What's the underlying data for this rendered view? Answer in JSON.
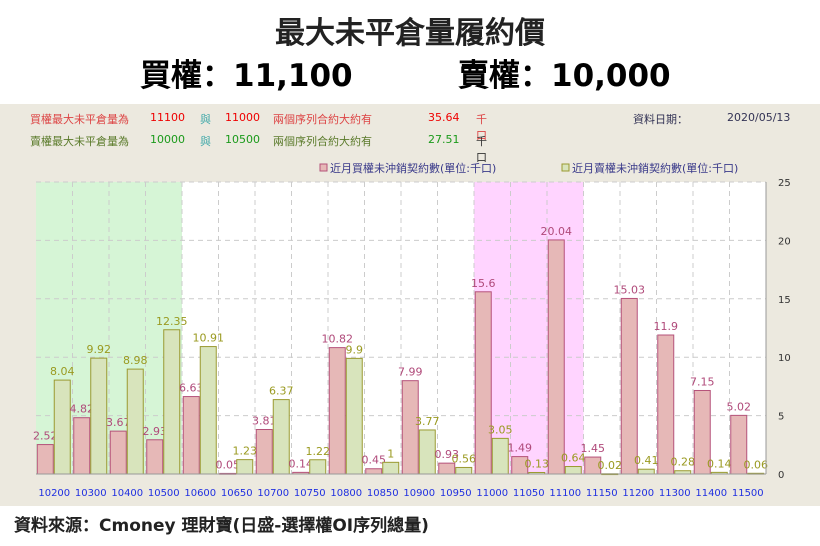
{
  "header": {
    "title": "最大未平倉量履約價",
    "call_label": "買權：11,100",
    "put_label": "賣權：10,000",
    "call_color": "#c0161b",
    "put_color": "#10a84a"
  },
  "info": {
    "call_row": {
      "label": "買權最大未平倉量為",
      "strike1": "11100",
      "conj": "與",
      "strike2": "11000",
      "desc": "兩個序列合約大約有",
      "value": "35.64",
      "unit": "千口"
    },
    "put_row": {
      "label": "賣權最大未平倉量為",
      "strike1": "10000",
      "conj": "與",
      "strike2": "10500",
      "desc": "兩個序列合約大約有",
      "value": "27.51",
      "unit": "千口"
    },
    "date_label": "資料日期：",
    "date": "2020/05/13"
  },
  "footer": "資料來源：Cmoney 理財寶(日盛-選擇權OI序列總量)",
  "chart_data": {
    "type": "bar",
    "categories": [
      "10200",
      "10300",
      "10400",
      "10500",
      "10600",
      "10650",
      "10700",
      "10750",
      "10800",
      "10850",
      "10900",
      "10950",
      "11000",
      "11050",
      "11100",
      "11150",
      "11200",
      "11300",
      "11400",
      "11500"
    ],
    "series": [
      {
        "name": "近月買權未沖銷契約數(單位:千口)",
        "color": "#e6b8b7",
        "values": [
          2.52,
          4.82,
          3.67,
          2.93,
          6.63,
          0.05,
          3.81,
          0.14,
          10.82,
          0.45,
          7.99,
          0.93,
          15.6,
          1.49,
          20.04,
          1.45,
          15.03,
          11.9,
          7.15,
          5.02
        ]
      },
      {
        "name": "近月賣權未沖銷契約數(單位:千口)",
        "color": "#d8e4bc",
        "values": [
          8.04,
          9.92,
          8.98,
          12.35,
          10.91,
          1.23,
          6.37,
          1.22,
          9.9,
          1,
          3.77,
          0.56,
          3.05,
          0.13,
          0.64,
          0.02,
          0.41,
          0.28,
          0.14,
          0.06
        ]
      }
    ],
    "ylim": [
      0,
      25
    ],
    "yticks": [
      0,
      5,
      10,
      15,
      20,
      25
    ],
    "y_axis_side": "right",
    "grid": true,
    "legend": "top",
    "highlights": [
      {
        "from": "10200",
        "to": "10500",
        "color": "#d6f5d6"
      },
      {
        "from": "11000",
        "to": "11100",
        "color": "#ffd4ff"
      }
    ]
  }
}
